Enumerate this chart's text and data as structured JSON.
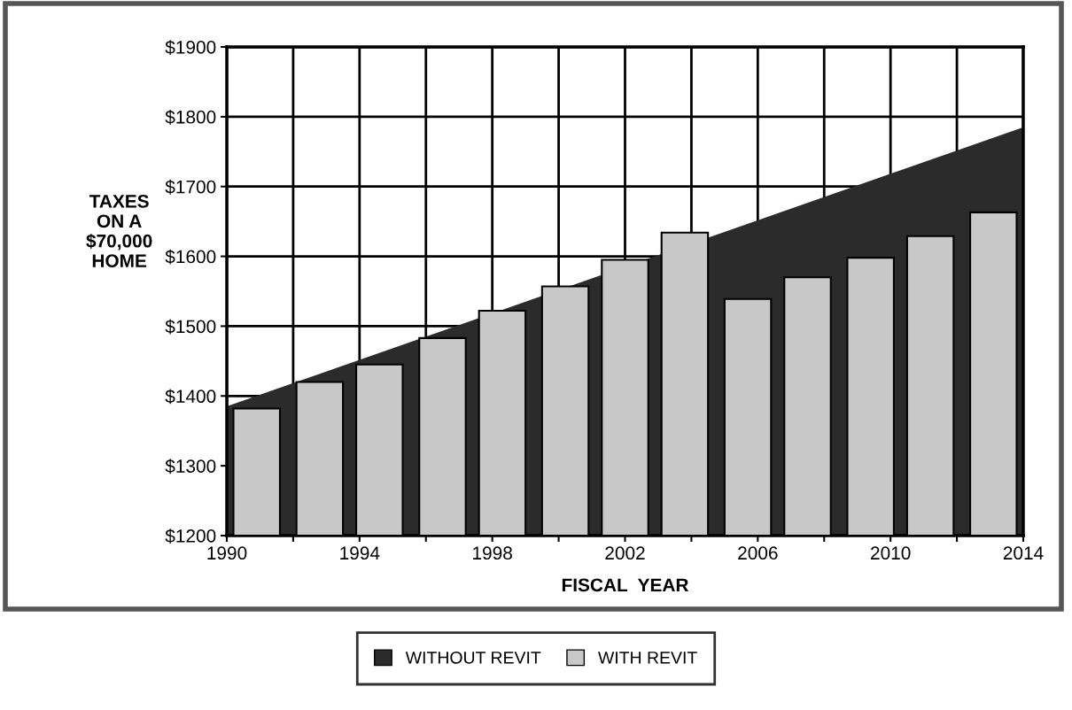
{
  "chart_data": {
    "type": "bar",
    "xlabel": "FISCAL  YEAR",
    "ylabel": "TAXES\nON A\n$70,000\nHOME",
    "xlim": [
      1990,
      2014
    ],
    "xticks": [
      1990,
      {
        "value": 1992,
        "label": null
      },
      1994,
      {
        "value": 1996,
        "label": null
      },
      1998,
      {
        "value": 2000,
        "label": null
      },
      2002,
      {
        "value": 2004,
        "label": null
      },
      2006,
      {
        "value": 2008,
        "label": null
      },
      2010,
      {
        "value": 2012,
        "label": null
      },
      2014
    ],
    "ylim": [
      1200,
      1900
    ],
    "yticks": [
      {
        "value": 1200,
        "label": "$1200"
      },
      {
        "value": 1300,
        "label": "$1300"
      },
      {
        "value": 1400,
        "label": "$1400"
      },
      {
        "value": 1500,
        "label": "$1500"
      },
      {
        "value": 1600,
        "label": "$1600"
      },
      {
        "value": 1700,
        "label": "$1700"
      },
      {
        "value": 1800,
        "label": "$1800"
      },
      {
        "value": 1900,
        "label": "$1900"
      }
    ],
    "grid": true,
    "legend": "bottom",
    "series": [
      {
        "name": "WITHOUT REVIT",
        "type": "area",
        "color": "#2b2b2b",
        "x": [
          1990,
          2014
        ],
        "values": [
          1385,
          1785
        ]
      },
      {
        "name": "WITH REVIT",
        "color": "#c8c8c8",
        "x": [
          1990.9,
          1992.8,
          1994.6,
          1996.5,
          1998.3,
          2000.2,
          2002.0,
          2003.8,
          2005.7,
          2007.5,
          2009.4,
          2011.2,
          2013.1
        ],
        "values": [
          1382,
          1420,
          1445,
          1483,
          1522,
          1557,
          1595,
          1634,
          1539,
          1570,
          1598,
          1629,
          1663
        ]
      }
    ]
  }
}
